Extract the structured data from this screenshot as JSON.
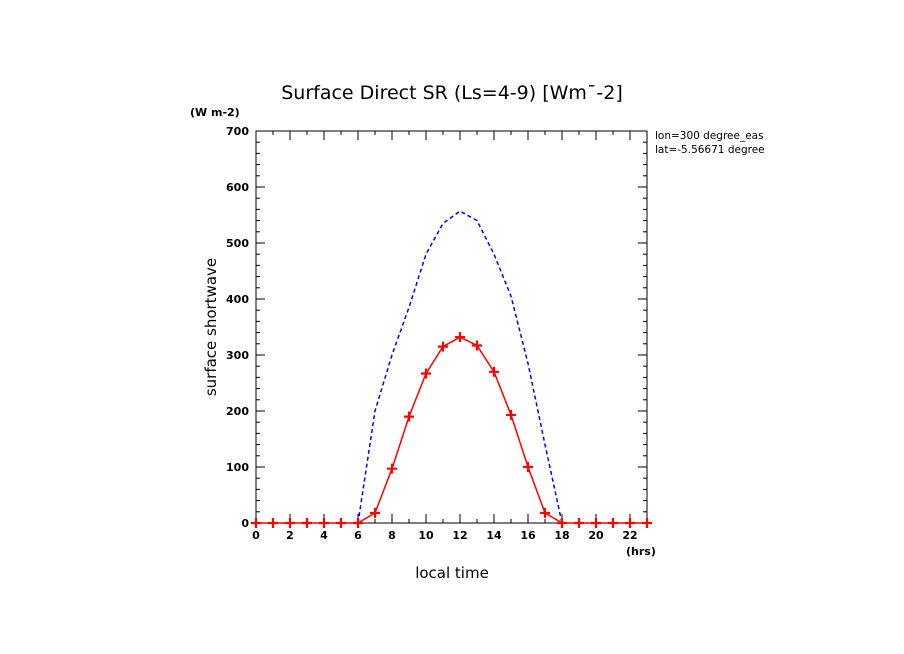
{
  "chart_data": {
    "type": "line",
    "title": "Surface Direct SR (Ls=4-9) [Wm¯-2]",
    "xlabel": "local time",
    "ylabel": "surface shortwave",
    "x_unit": "(hrs)",
    "y_unit": "(W m-2)",
    "annotations": [
      "lon=300 degree_eas",
      "lat=-5.56671 degree"
    ],
    "xlim": [
      0,
      23
    ],
    "ylim": [
      0,
      700
    ],
    "xticks": [
      0,
      2,
      4,
      6,
      8,
      10,
      12,
      14,
      16,
      18,
      20,
      22
    ],
    "yticks": [
      0,
      100,
      200,
      300,
      400,
      500,
      600,
      700
    ],
    "x_minor_step": 1,
    "y_minor_step": 20,
    "grid": false,
    "series": [
      {
        "color": "#ff0000",
        "style": "solid",
        "marker": "plus",
        "x": [
          0,
          1,
          2,
          3,
          4,
          5,
          6,
          7,
          8,
          9,
          10,
          11,
          12,
          13,
          14,
          15,
          16,
          17,
          18,
          19,
          20,
          21,
          22,
          23
        ],
        "y": [
          0,
          0,
          0,
          0,
          0,
          0,
          0,
          18,
          97,
          190,
          267,
          315,
          332,
          317,
          270,
          193,
          100,
          18,
          0,
          0,
          0,
          0,
          0,
          0
        ]
      },
      {
        "color": "#0000ff",
        "style": "dashed",
        "marker": "none",
        "x": [
          6,
          7,
          8,
          9,
          10,
          11,
          12,
          13,
          14,
          15,
          16,
          17,
          18
        ],
        "y": [
          0,
          200,
          300,
          385,
          480,
          535,
          557,
          540,
          480,
          405,
          285,
          140,
          0
        ]
      }
    ]
  }
}
